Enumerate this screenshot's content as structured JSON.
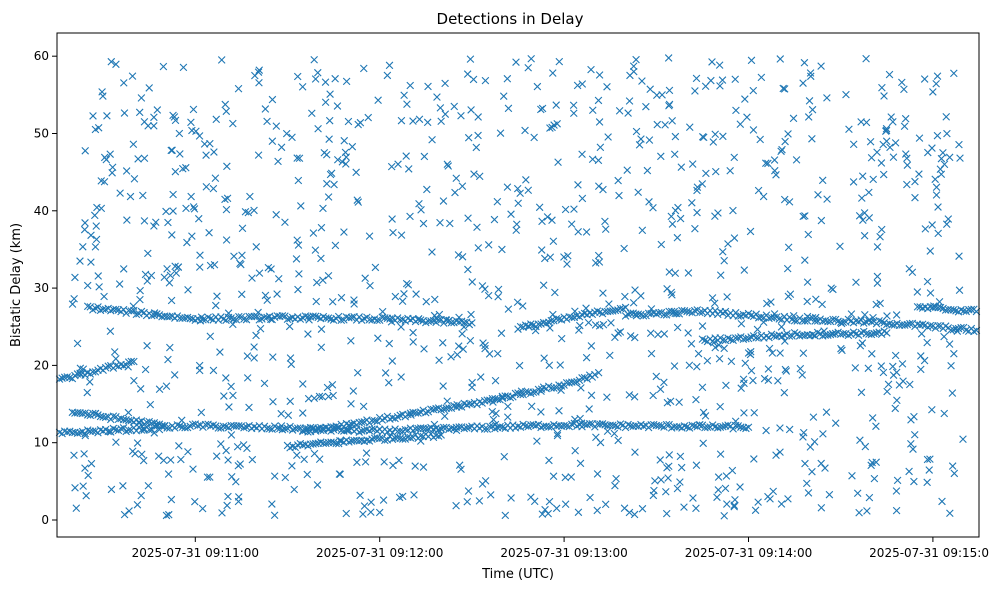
{
  "chart_data": {
    "type": "scatter",
    "title": "Detections in Delay",
    "xlabel": "Time (UTC)",
    "ylabel": "Bistatic Delay (km)",
    "x_start": "2025-07-31 09:10:15",
    "x_end": "2025-07-31 09:15:15",
    "xlim": [
      "2025-07-31 09:10:15",
      "2025-07-31 09:15:15"
    ],
    "ylim": [
      -2.2,
      63
    ],
    "x_ticks": [
      "2025-07-31 09:11:00",
      "2025-07-31 09:12:00",
      "2025-07-31 09:13:00",
      "2025-07-31 09:14:00",
      "2025-07-31 09:15:00"
    ],
    "y_ticks": [
      0,
      10,
      20,
      30,
      40,
      50,
      60
    ],
    "marker": "x",
    "color": "#1f77b4",
    "grid": false,
    "track_samples": [
      {
        "x": "2025-07-31 09:10:15",
        "y": 11.2
      },
      {
        "x": "2025-07-31 09:11:00",
        "y": 12.2
      },
      {
        "x": "2025-07-31 09:12:00",
        "y": 11.5
      },
      {
        "x": "2025-07-31 09:13:00",
        "y": 12.3
      },
      {
        "x": "2025-07-31 09:14:00",
        "y": 12.0
      },
      {
        "x": "2025-07-31 09:10:15",
        "y": 18.0
      },
      {
        "x": "2025-07-31 09:10:40",
        "y": 20.5
      },
      {
        "x": "2025-07-31 09:10:20",
        "y": 14.0
      },
      {
        "x": "2025-07-31 09:10:50",
        "y": 12.2
      },
      {
        "x": "2025-07-31 09:10:25",
        "y": 27.5
      },
      {
        "x": "2025-07-31 09:11:00",
        "y": 26.0
      },
      {
        "x": "2025-07-31 09:11:30",
        "y": 26.2
      },
      {
        "x": "2025-07-31 09:12:00",
        "y": 26.0
      },
      {
        "x": "2025-07-31 09:12:30",
        "y": 25.5
      },
      {
        "x": "2025-07-31 09:11:30",
        "y": 9.5
      },
      {
        "x": "2025-07-31 09:12:00",
        "y": 10.5
      },
      {
        "x": "2025-07-31 09:12:20",
        "y": 11.0
      },
      {
        "x": "2025-07-31 09:11:35",
        "y": 11.5
      },
      {
        "x": "2025-07-31 09:12:00",
        "y": 13.0
      },
      {
        "x": "2025-07-31 09:12:30",
        "y": 15.0
      },
      {
        "x": "2025-07-31 09:13:00",
        "y": 17.5
      },
      {
        "x": "2025-07-31 09:13:10",
        "y": 18.8
      },
      {
        "x": "2025-07-31 09:12:45",
        "y": 24.8
      },
      {
        "x": "2025-07-31 09:13:00",
        "y": 26.0
      },
      {
        "x": "2025-07-31 09:13:20",
        "y": 27.5
      },
      {
        "x": "2025-07-31 09:13:20",
        "y": 26.5
      },
      {
        "x": "2025-07-31 09:13:45",
        "y": 27.0
      },
      {
        "x": "2025-07-31 09:14:15",
        "y": 26.0
      },
      {
        "x": "2025-07-31 09:14:45",
        "y": 25.5
      },
      {
        "x": "2025-07-31 09:15:15",
        "y": 24.5
      },
      {
        "x": "2025-07-31 09:13:45",
        "y": 23.2
      },
      {
        "x": "2025-07-31 09:14:15",
        "y": 24.0
      },
      {
        "x": "2025-07-31 09:14:45",
        "y": 24.2
      },
      {
        "x": "2025-07-31 09:14:55",
        "y": 27.5
      },
      {
        "x": "2025-07-31 09:15:15",
        "y": 27.0
      }
    ],
    "noise_y_range": [
      0.5,
      59.8
    ],
    "noise_count": 1150
  }
}
